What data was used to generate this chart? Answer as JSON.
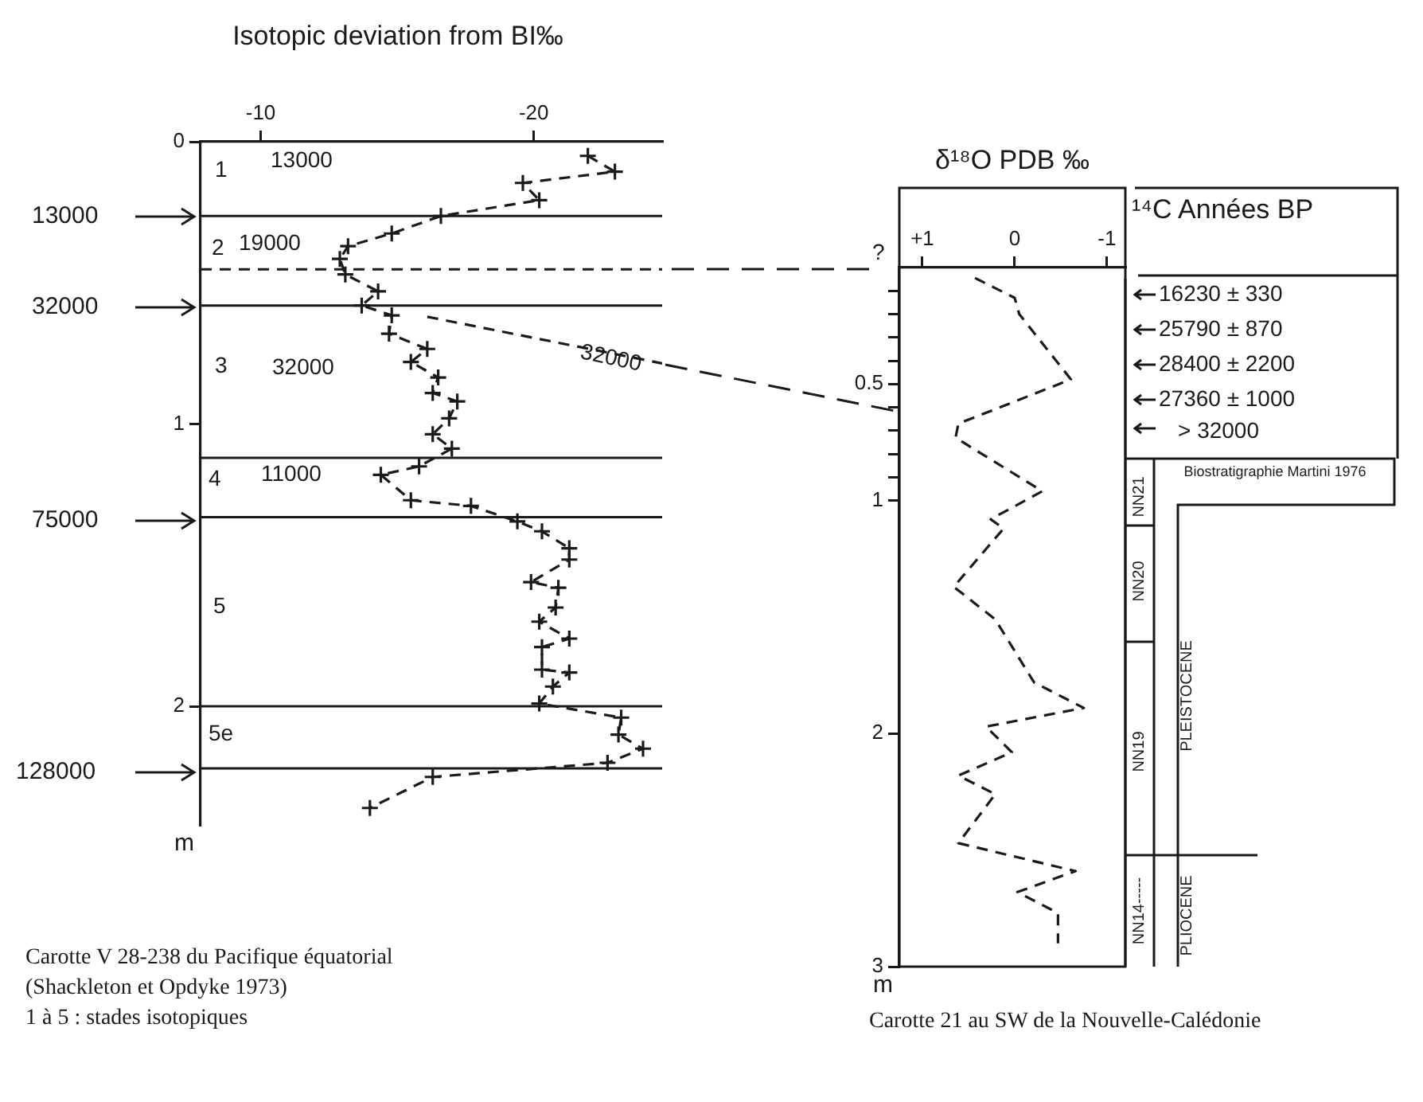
{
  "chart_data": [
    {
      "type": "line",
      "xlabel": "Isotopic deviation from BI‰",
      "ylabel": "m",
      "color": "#1a1a1a",
      "marker": "cross",
      "line_style": "dashed",
      "series": [
        {
          "color": "#1a1a1a",
          "x": [
            -21.98,
            -22.97,
            -19.6,
            -20.2,
            -16.6,
            -14.8,
            -13.2,
            -12.9,
            -13.1,
            -14.3,
            -13.7,
            -14.8,
            -14.7,
            -16.1,
            -15.5,
            -16.5,
            -16.3,
            -17.2,
            -16.9,
            -16.3,
            -17.0,
            -15.8,
            -14.4,
            -15.5,
            -17.7,
            -19.4,
            -20.3,
            -21.3,
            -21.3,
            -19.9,
            -20.9,
            -20.8,
            -20.2,
            -21.3,
            -20.3,
            -20.3,
            -21.3,
            -20.7,
            -20.2,
            -23.2,
            -23.1,
            -24.0,
            -22.7,
            -16.3,
            -14.0
          ],
          "values": [
            0.05,
            0.106,
            0.146,
            0.207,
            0.263,
            0.325,
            0.37,
            0.415,
            0.47,
            0.53,
            0.58,
            0.615,
            0.68,
            0.734,
            0.78,
            0.835,
            0.89,
            0.92,
            0.98,
            1.036,
            1.087,
            1.15,
            1.18,
            1.27,
            1.29,
            1.345,
            1.38,
            1.44,
            1.48,
            1.56,
            1.58,
            1.65,
            1.7,
            1.76,
            1.79,
            1.87,
            1.88,
            1.93,
            1.99,
            2.04,
            2.1,
            2.15,
            2.2,
            2.25,
            2.36
          ]
        },
        {
          "color": "#1a1a1a",
          "marker": "none",
          "x": [
            -16.1,
            -24.7
          ],
          "values": [
            0.62,
            0.785
          ]
        }
      ],
      "xlim": [
        -7.8,
        -24.7
      ],
      "xticks": [
        -10,
        -20
      ],
      "ylim": [
        2.42,
        0
      ],
      "yticks": [
        0,
        1,
        2
      ],
      "ref_lines": [
        {
          "axis": "y",
          "value": 0.263
        },
        {
          "axis": "y",
          "value": 0.452,
          "line_style": "dashed"
        },
        {
          "axis": "y",
          "value": 0.58
        },
        {
          "axis": "y",
          "value": 1.12
        },
        {
          "axis": "y",
          "value": 1.33
        },
        {
          "axis": "y",
          "value": 2.0
        },
        {
          "axis": "y",
          "value": 2.22
        }
      ],
      "annotations": [
        "1",
        "13000",
        "2",
        "19000",
        "3",
        "32000",
        "4",
        "11000",
        "5",
        "5e",
        "32000",
        "13000",
        "32000",
        "75000",
        "128000",
        "Carotte V 28-238 du Pacifique équatorial",
        "(Shackleton et Opdyke 1973)",
        "1 à 5  : stades isotopiques"
      ]
    },
    {
      "type": "line",
      "xlabel": "δ¹⁸O PDB ‰",
      "ylabel": "m",
      "color": "#1a1a1a",
      "line_style": "dashed",
      "x": [
        0.43,
        0,
        -0.05,
        -0.61,
        0.61,
        0.64,
        -0.3,
        0.26,
        0.12,
        0.66,
        0.21,
        -0.21,
        -0.75,
        0.31,
        0.03,
        0.61,
        0.21,
        0.61,
        -0.66,
        -0.03,
        -0.47,
        -0.47
      ],
      "values": [
        0.045,
        0.13,
        0.2,
        0.48,
        0.67,
        0.73,
        0.96,
        1.08,
        1.12,
        1.37,
        1.51,
        1.78,
        1.89,
        1.97,
        2.08,
        2.18,
        2.26,
        2.47,
        2.59,
        2.68,
        2.77,
        2.9
      ],
      "xlim": [
        1.25,
        -1.2
      ],
      "xticks": [
        {
          "value": 1,
          "label": "+1"
        },
        0,
        -1
      ],
      "ylim": [
        3,
        0
      ],
      "yticks": [
        {
          "value": 0.1,
          "label": null
        },
        {
          "value": 0.2,
          "label": null
        },
        {
          "value": 0.3,
          "label": null
        },
        {
          "value": 0.4,
          "label": null
        },
        0.5,
        {
          "value": 0.6,
          "label": null
        },
        {
          "value": 0.7,
          "label": null
        },
        {
          "value": 0.8,
          "label": null
        },
        {
          "value": 0.9,
          "label": null
        },
        1,
        2,
        3
      ],
      "annotations": [
        "?",
        "¹⁴C Années BP",
        "16230 ± 330",
        "25790 ± 870",
        "28400 ± 2200",
        "27360 ± 1000",
        "> 32000",
        "Biostratigraphie Martini 1976",
        "NN21",
        "NN20",
        "NN19",
        "NN14-----",
        "PLEISTOCENE",
        "PLIOCENE",
        "Carotte 21 au SW de la Nouvelle-Calédonie"
      ]
    }
  ]
}
